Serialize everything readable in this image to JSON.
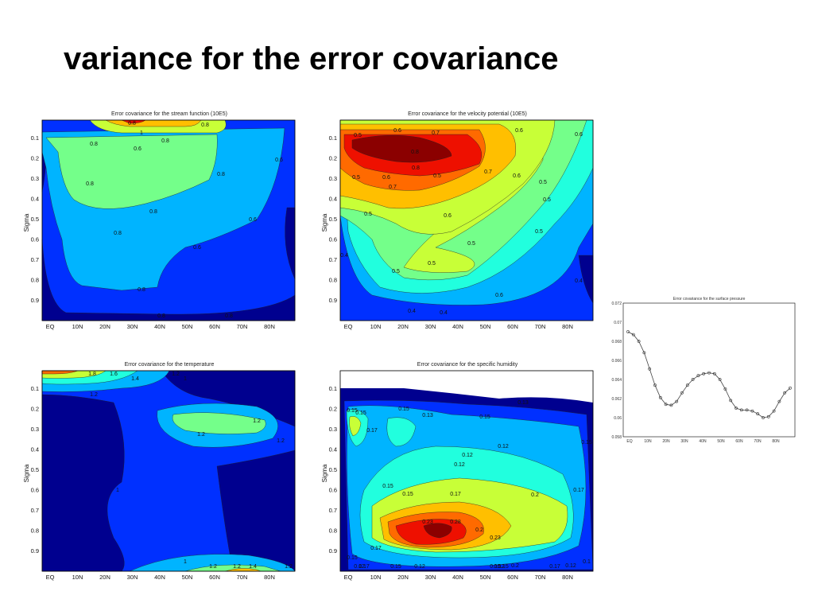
{
  "slide": {
    "title": "variance for the error covariance"
  },
  "colors": {
    "c0": "#00008f",
    "c1": "#0030ff",
    "c2": "#00b4ff",
    "c3": "#21ffde",
    "c4": "#74ff8a",
    "c5": "#c8ff37",
    "c6": "#ffbf00",
    "c7": "#ff6a00",
    "c8": "#ee1000",
    "c9": "#8b0000"
  },
  "chart_data": [
    {
      "type": "heatmap",
      "title": "Error covariance for the stream function (10E5)",
      "ylabel": "Sigma",
      "xticks": [
        "EQ",
        "10N",
        "20N",
        "30N",
        "40N",
        "50N",
        "60N",
        "70N",
        "80N"
      ],
      "yticks": [
        "0.1",
        "0.2",
        "0.3",
        "0.4",
        "0.5",
        "0.6",
        "0.7",
        "0.8",
        "0.9"
      ],
      "contour_labels": [
        "0.8",
        "0.8",
        "0.8",
        "1",
        "0.8",
        "0.8",
        "0.8",
        "0.8",
        "0.6",
        "0.8",
        "0.6",
        "0.6",
        "0.8",
        "0.8",
        "0.8",
        "0.6"
      ]
    },
    {
      "type": "heatmap",
      "title": "Error covariance for the velocity potential (10E5)",
      "ylabel": "Sigma",
      "xticks": [
        "EQ",
        "10N",
        "20N",
        "30N",
        "40N",
        "50N",
        "60N",
        "70N",
        "80N"
      ],
      "yticks": [
        "0.1",
        "0.2",
        "0.3",
        "0.4",
        "0.5",
        "0.6",
        "0.7",
        "0.8",
        "0.9"
      ],
      "contour_labels": [
        "0.5",
        "0.6",
        "0.7",
        "0.6",
        "0.6",
        "0.5",
        "0.8",
        "0.6",
        "0.8",
        "0.7",
        "0.6",
        "0.7",
        "0.5",
        "0.5",
        "0.5",
        "0.6",
        "0.5",
        "0.5",
        "0.5",
        "0.5",
        "0.4",
        "0.4",
        "0.5",
        "0.6",
        "0.4",
        "0.4"
      ]
    },
    {
      "type": "line",
      "title": "Error covariance for the surface pressure",
      "xticks": [
        "EQ",
        "10N",
        "20N",
        "30N",
        "40N",
        "50N",
        "60N",
        "70N",
        "80N"
      ],
      "yticks": [
        "0.058",
        "0.06",
        "0.062",
        "0.064",
        "0.066",
        "0.068",
        "0.07",
        "0.072"
      ],
      "ylim": [
        0.058,
        0.072
      ],
      "xlim": [
        0,
        90
      ],
      "x": [
        0,
        3,
        6,
        9,
        12,
        15,
        18,
        21,
        24,
        27,
        30,
        33,
        36,
        39,
        42,
        45,
        48,
        51,
        54,
        57,
        60,
        63,
        66,
        69,
        72,
        75,
        78,
        81,
        84,
        87,
        90
      ],
      "y": [
        0.069,
        0.0687,
        0.068,
        0.0668,
        0.0651,
        0.0634,
        0.0621,
        0.0614,
        0.0613,
        0.0617,
        0.0626,
        0.0634,
        0.064,
        0.0644,
        0.0646,
        0.0647,
        0.0646,
        0.064,
        0.063,
        0.0618,
        0.061,
        0.0608,
        0.0608,
        0.0607,
        0.0604,
        0.06,
        0.0601,
        0.0607,
        0.0617,
        0.0626,
        0.0631
      ]
    },
    {
      "type": "heatmap",
      "title": "Error covariance for the temperature",
      "ylabel": "Sigma",
      "xticks": [
        "EQ",
        "10N",
        "20N",
        "30N",
        "40N",
        "50N",
        "60N",
        "70N",
        "80N"
      ],
      "yticks": [
        "0.1",
        "0.2",
        "0.3",
        "0.4",
        "0.5",
        "0.6",
        "0.7",
        "0.8",
        "0.9"
      ],
      "contour_labels": [
        "1.8",
        "1.6",
        "1.4",
        "1.2",
        "1.2",
        "1.2",
        "1.2",
        "1.2",
        "1",
        "1",
        "1",
        "1.2",
        "1.2",
        "1.4",
        "1.2"
      ]
    },
    {
      "type": "heatmap",
      "title": "Error covariance for the specific humidity",
      "ylabel": "Sigma",
      "xticks": [
        "EQ",
        "10N",
        "20N",
        "30N",
        "40N",
        "50N",
        "60N",
        "70N",
        "80N"
      ],
      "yticks": [
        "0.1",
        "0.2",
        "0.3",
        "0.4",
        "0.5",
        "0.6",
        "0.7",
        "0.8",
        "0.9"
      ],
      "contour_labels": [
        "0.15",
        "0.15",
        "0.17",
        "0.15",
        "0.13",
        "0.15",
        "0.12",
        "0.12",
        "0.15",
        "0.15",
        "0.17",
        "0.2",
        "0.23",
        "0.28",
        "0.2",
        "0.23",
        "0.2",
        "0.17",
        "0.15",
        "0.15",
        "0.15",
        "0.17",
        "0.17",
        "0.13",
        "0.15",
        "0.12",
        "0.12",
        "0.12",
        "0.1",
        "0.15",
        "0.17",
        "0.12",
        "0.12"
      ]
    }
  ]
}
